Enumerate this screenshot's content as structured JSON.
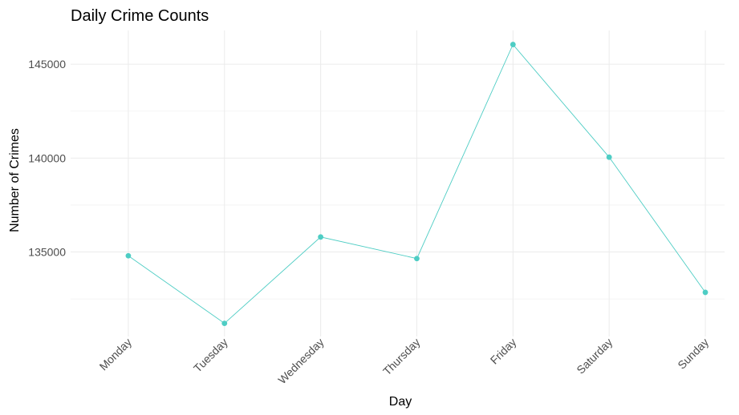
{
  "chart_data": {
    "type": "line",
    "title": "Daily Crime Counts",
    "xlabel": "Day",
    "ylabel": "Number of Crimes",
    "categories": [
      "Monday",
      "Tuesday",
      "Wednesday",
      "Thursday",
      "Friday",
      "Saturday",
      "Sunday"
    ],
    "values": [
      134800,
      131200,
      135800,
      134650,
      146050,
      140050,
      132850
    ],
    "ylim": [
      130500,
      146800
    ],
    "yticks": [
      135000,
      140000,
      145000
    ],
    "ytick_labels": [
      "135000",
      "140000",
      "145000"
    ],
    "grid": true,
    "legend": "none",
    "color": "#4ecdc4"
  }
}
